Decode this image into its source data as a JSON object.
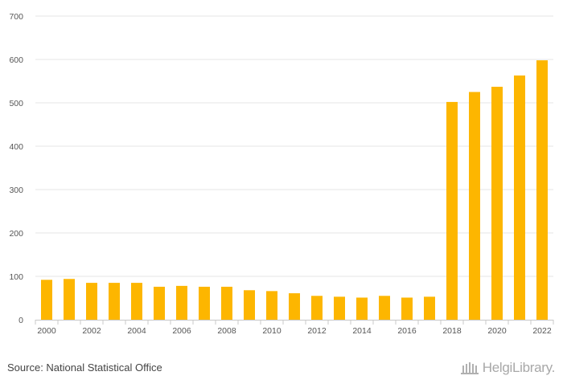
{
  "chart_data": {
    "type": "bar",
    "categories": [
      "2000",
      "2001",
      "2002",
      "2003",
      "2004",
      "2005",
      "2006",
      "2007",
      "2008",
      "2009",
      "2010",
      "2011",
      "2012",
      "2013",
      "2014",
      "2015",
      "2016",
      "2017",
      "2018",
      "2019",
      "2020",
      "2021",
      "2022"
    ],
    "x_tick_labels": [
      "2000",
      "2002",
      "2004",
      "2006",
      "2008",
      "2010",
      "2012",
      "2014",
      "2016",
      "2018",
      "2020",
      "2022"
    ],
    "values": [
      92,
      94,
      85,
      85,
      85,
      76,
      78,
      76,
      76,
      68,
      66,
      61,
      55,
      53,
      51,
      55,
      51,
      53,
      502,
      525,
      537,
      563,
      598
    ],
    "y_ticks": [
      0,
      100,
      200,
      300,
      400,
      500,
      600,
      700
    ],
    "ylim": [
      0,
      700
    ],
    "title": "",
    "xlabel": "",
    "ylabel": "",
    "grid": true,
    "bar_color": "#FDB600"
  },
  "footer": {
    "source": "Source: National Statistical Office",
    "logo_text": "HelgiLibrary."
  }
}
